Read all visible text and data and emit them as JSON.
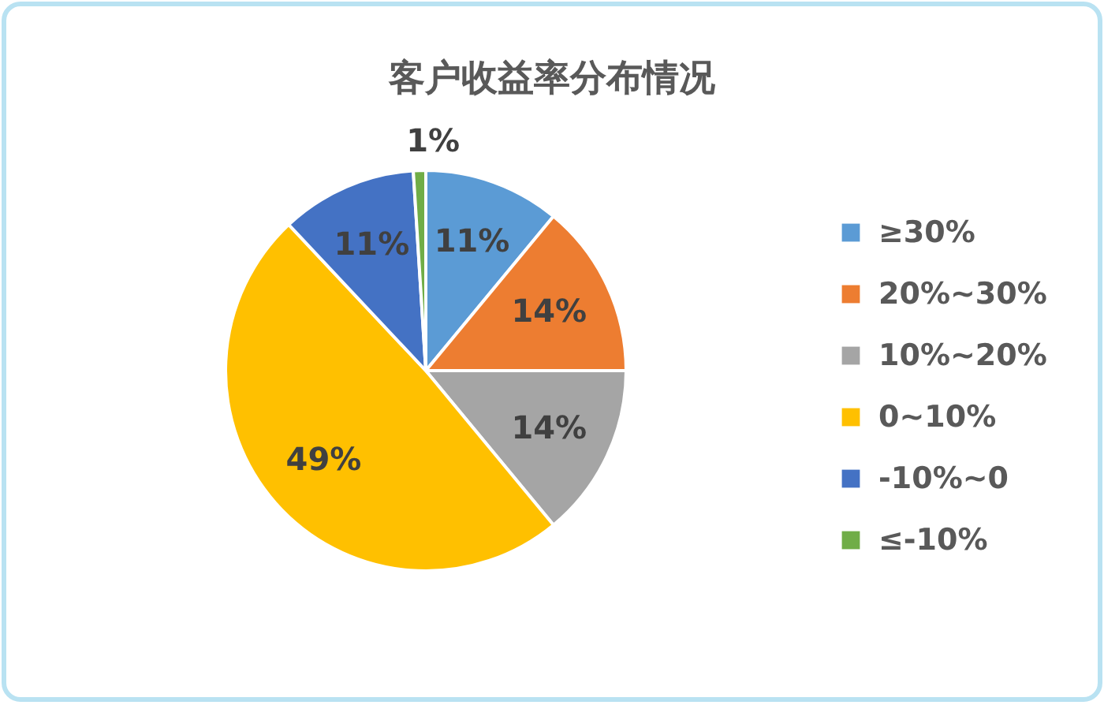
{
  "chart_data": {
    "type": "pie",
    "title": "客户收益率分布情况",
    "categories": [
      "≥30%",
      "20%~30%",
      "10%~20%",
      "0~10%",
      "-10%~0",
      "≤-10%"
    ],
    "values": [
      11,
      14,
      14,
      49,
      11,
      1
    ],
    "colors": [
      "#5b9bd5",
      "#ed7d31",
      "#a5a5a5",
      "#ffc000",
      "#4472c4",
      "#70ad47"
    ],
    "value_labels": [
      "11%",
      "14%",
      "14%",
      "49%",
      "11%",
      "1%"
    ],
    "legend": "right"
  }
}
